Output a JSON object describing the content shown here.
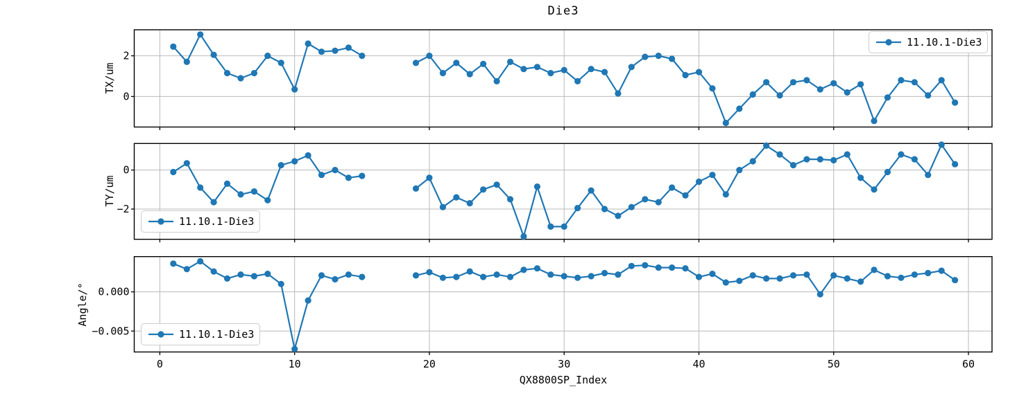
{
  "chart_data": {
    "type": "line",
    "title": "Die3",
    "xlabel": "QX8800SP_Index",
    "legend": "11.10.1-Die3",
    "grid": true,
    "line_color": "#1f77b4",
    "grid_color": "#b9b9b9",
    "frame_color": "#000000",
    "legend_positions": [
      "upper-right",
      "lower-left",
      "lower-left"
    ],
    "xlim": [
      -1.9,
      61.75
    ],
    "x_ticks": [
      {
        "value": 0,
        "label": "0"
      },
      {
        "value": 10,
        "label": "10"
      },
      {
        "value": 20,
        "label": "20"
      },
      {
        "value": 30,
        "label": "30"
      },
      {
        "value": 40,
        "label": "40"
      },
      {
        "value": 50,
        "label": "50"
      },
      {
        "value": 60,
        "label": "60"
      }
    ],
    "x": [
      1,
      2,
      3,
      4,
      5,
      6,
      7,
      8,
      9,
      10,
      11,
      12,
      13,
      14,
      15,
      19,
      20,
      21,
      22,
      23,
      24,
      25,
      26,
      27,
      28,
      29,
      30,
      31,
      32,
      33,
      34,
      35,
      36,
      37,
      38,
      39,
      40,
      41,
      42,
      43,
      44,
      45,
      46,
      47,
      48,
      49,
      50,
      51,
      52,
      53,
      54,
      55,
      56,
      57,
      58,
      59
    ],
    "subplots": [
      {
        "ylabel": "TX/um",
        "ylim": [
          -1.5,
          3.28
        ],
        "y_ticks": [
          {
            "value": 0,
            "label": "0"
          },
          {
            "value": 2,
            "label": "2"
          }
        ],
        "values": [
          2.45,
          1.7,
          3.05,
          2.05,
          1.15,
          0.9,
          1.15,
          2.0,
          1.65,
          0.35,
          2.6,
          2.2,
          2.25,
          2.4,
          2.0,
          1.65,
          2.0,
          1.15,
          1.65,
          1.1,
          1.6,
          0.75,
          1.7,
          1.35,
          1.45,
          1.15,
          1.3,
          0.75,
          1.35,
          1.2,
          0.15,
          1.45,
          1.95,
          2.0,
          1.85,
          1.05,
          1.2,
          0.4,
          -1.3,
          -0.6,
          0.1,
          0.7,
          0.05,
          0.7,
          0.8,
          0.35,
          0.65,
          0.2,
          0.6,
          -1.2,
          -0.05,
          0.8,
          0.7,
          0.05,
          0.8,
          -0.3
        ]
      },
      {
        "ylabel": "TY/um",
        "ylim": [
          -3.55,
          1.36
        ],
        "y_ticks": [
          {
            "value": 0,
            "label": "0"
          },
          {
            "value": -2,
            "label": "−2"
          }
        ],
        "values": [
          -0.1,
          0.35,
          -0.9,
          -1.65,
          -0.7,
          -1.25,
          -1.1,
          -1.55,
          0.25,
          0.45,
          0.75,
          -0.25,
          0.0,
          -0.4,
          -0.3,
          -0.95,
          -0.4,
          -1.9,
          -1.4,
          -1.7,
          -1.0,
          -0.75,
          -1.5,
          -3.4,
          -0.85,
          -2.9,
          -2.9,
          -1.95,
          -1.05,
          -2.0,
          -2.35,
          -1.9,
          -1.5,
          -1.65,
          -0.9,
          -1.3,
          -0.6,
          -0.25,
          -1.25,
          0.0,
          0.45,
          1.25,
          0.8,
          0.25,
          0.55,
          0.55,
          0.5,
          0.8,
          -0.4,
          -1.0,
          -0.1,
          0.8,
          0.55,
          -0.25,
          1.3,
          0.3
        ]
      },
      {
        "ylabel": "Angle/°",
        "ylim": [
          -0.00767,
          0.0045
        ],
        "y_ticks": [
          {
            "value": 0,
            "label": "0.000"
          },
          {
            "value": -0.005,
            "label": "−0.005"
          }
        ],
        "values": [
          0.0036,
          0.0029,
          0.0039,
          0.0026,
          0.0017,
          0.0022,
          0.002,
          0.0023,
          0.001,
          -0.0073,
          -0.0011,
          0.0021,
          0.0016,
          0.0022,
          0.0019,
          0.0021,
          0.0025,
          0.0018,
          0.0019,
          0.0026,
          0.0019,
          0.0022,
          0.0019,
          0.0028,
          0.003,
          0.0022,
          0.002,
          0.0018,
          0.002,
          0.0024,
          0.0022,
          0.0033,
          0.0034,
          0.0031,
          0.0031,
          0.003,
          0.0019,
          0.0023,
          0.0012,
          0.0014,
          0.0021,
          0.0017,
          0.0017,
          0.0021,
          0.0022,
          -0.0003,
          0.0021,
          0.0017,
          0.0013,
          0.0028,
          0.002,
          0.0018,
          0.0022,
          0.0024,
          0.0027,
          0.0015
        ]
      }
    ]
  }
}
